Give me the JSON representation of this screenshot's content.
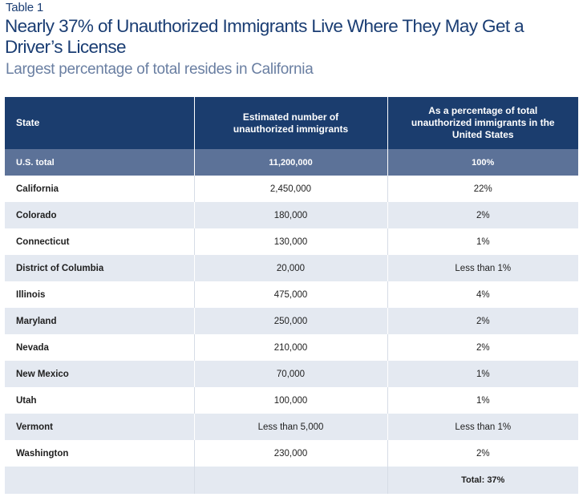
{
  "label": "Table 1",
  "title": "Nearly 37% of Unauthorized Immigrants Live Where They May Get a Driver’s License",
  "subtitle": "Largest percentage of total resides in California",
  "headers": {
    "state": "State",
    "number": "Estimated number of unauthorized immigrants",
    "percent": "As a percentage of total unauthorized immigrants in the United States"
  },
  "us_total": {
    "state": "U.S. total",
    "number": "11,200,000",
    "percent": "100%"
  },
  "rows": [
    {
      "state": "California",
      "number": "2,450,000",
      "percent": "22%"
    },
    {
      "state": "Colorado",
      "number": "180,000",
      "percent": "2%"
    },
    {
      "state": "Connecticut",
      "number": "130,000",
      "percent": "1%"
    },
    {
      "state": "District of Columbia",
      "number": "20,000",
      "percent": "Less than 1%"
    },
    {
      "state": "Illinois",
      "number": "475,000",
      "percent": "4%"
    },
    {
      "state": "Maryland",
      "number": "250,000",
      "percent": "2%"
    },
    {
      "state": "Nevada",
      "number": "210,000",
      "percent": "2%"
    },
    {
      "state": "New Mexico",
      "number": "70,000",
      "percent": "1%"
    },
    {
      "state": "Utah",
      "number": "100,000",
      "percent": "1%"
    },
    {
      "state": "Vermont",
      "number": "Less than 5,000",
      "percent": "Less than 1%"
    },
    {
      "state": "Washington",
      "number": "230,000",
      "percent": "2%"
    }
  ],
  "footer_total": "Total: 37%"
}
